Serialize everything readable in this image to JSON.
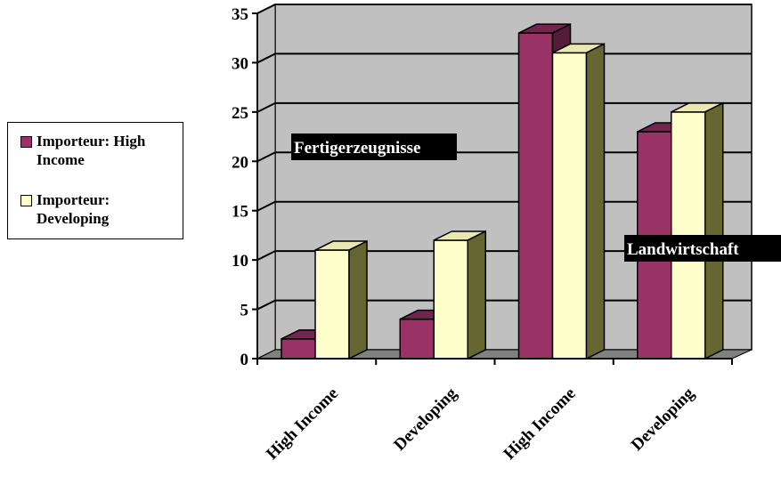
{
  "chart_data": {
    "type": "bar",
    "categories": [
      "High Income",
      "Developing",
      "High Income",
      "Developing"
    ],
    "series": [
      {
        "name": "Importeur: High Income",
        "color": "#993366",
        "values": [
          2,
          4,
          33,
          23
        ]
      },
      {
        "name": "Importeur: Developing",
        "color": "#FFFFCC",
        "values": [
          11,
          12,
          31,
          25
        ]
      }
    ],
    "ylim": [
      0,
      35
    ],
    "yticks": [
      0,
      5,
      10,
      15,
      20,
      25,
      30,
      35
    ],
    "grid": true,
    "legend": "left",
    "annotations": [
      {
        "text": "Fertigerzeugnisse"
      },
      {
        "text": "Landwirtschaft"
      }
    ],
    "colors": {
      "wall": "#C0C0C0",
      "floor": "#808080",
      "side_dark": "#666633"
    }
  }
}
